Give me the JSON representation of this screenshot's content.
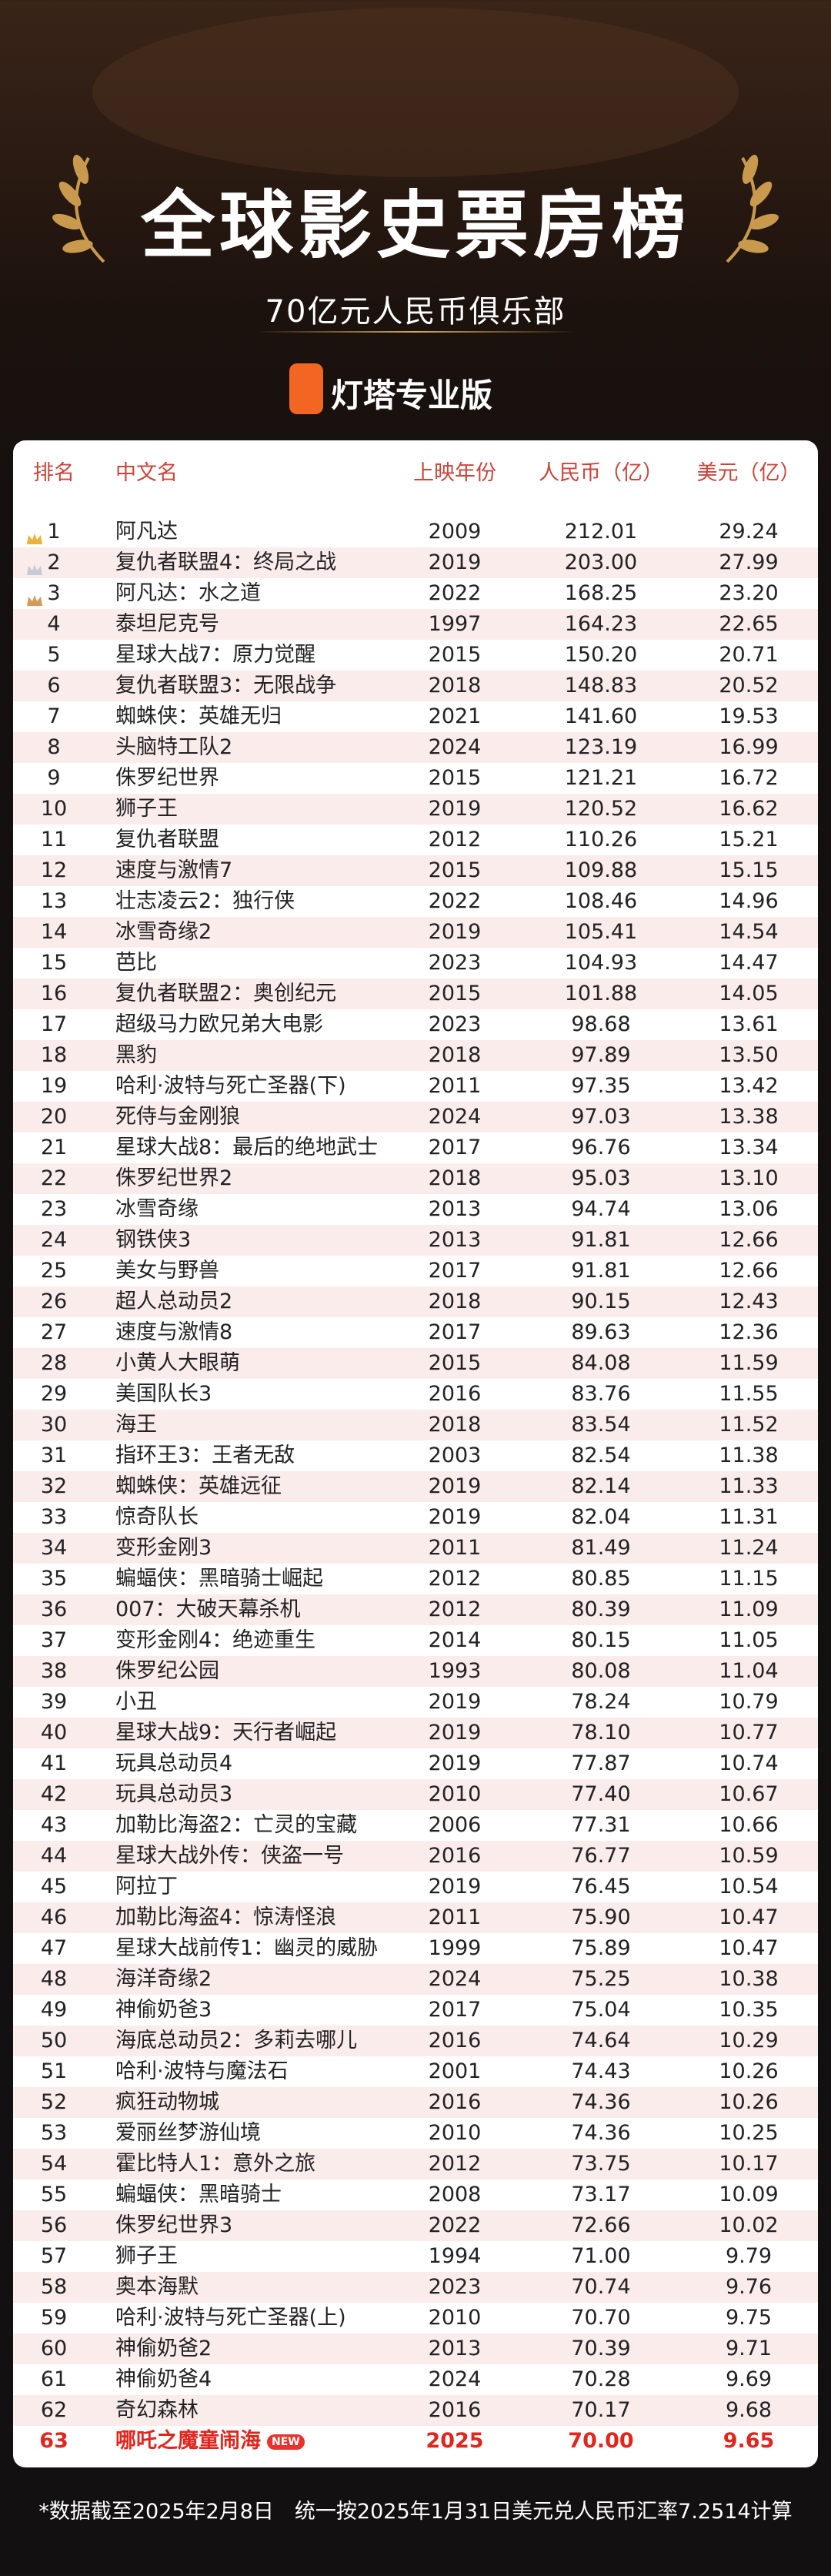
{
  "header": {
    "title": "全球影史票房榜",
    "subtitle": "70亿元人民币俱乐部",
    "brand": "灯塔专业版"
  },
  "table": {
    "columns": [
      "排名",
      "中文名",
      "上映年份",
      "人民币（亿）",
      "美元（亿）"
    ],
    "badge": "NEW",
    "rows": [
      [
        "1",
        "阿凡达",
        "2009",
        "212.01",
        "29.24"
      ],
      [
        "2",
        "复仇者联盟4：终局之战",
        "2019",
        "203.00",
        "27.99"
      ],
      [
        "3",
        "阿凡达：水之道",
        "2022",
        "168.25",
        "23.20"
      ],
      [
        "4",
        "泰坦尼克号",
        "1997",
        "164.23",
        "22.65"
      ],
      [
        "5",
        "星球大战7：原力觉醒",
        "2015",
        "150.20",
        "20.71"
      ],
      [
        "6",
        "复仇者联盟3：无限战争",
        "2018",
        "148.83",
        "20.52"
      ],
      [
        "7",
        "蜘蛛侠：英雄无归",
        "2021",
        "141.60",
        "19.53"
      ],
      [
        "8",
        "头脑特工队2",
        "2024",
        "123.19",
        "16.99"
      ],
      [
        "9",
        "侏罗纪世界",
        "2015",
        "121.21",
        "16.72"
      ],
      [
        "10",
        "狮子王",
        "2019",
        "120.52",
        "16.62"
      ],
      [
        "11",
        "复仇者联盟",
        "2012",
        "110.26",
        "15.21"
      ],
      [
        "12",
        "速度与激情7",
        "2015",
        "109.88",
        "15.15"
      ],
      [
        "13",
        "壮志凌云2：独行侠",
        "2022",
        "108.46",
        "14.96"
      ],
      [
        "14",
        "冰雪奇缘2",
        "2019",
        "105.41",
        "14.54"
      ],
      [
        "15",
        "芭比",
        "2023",
        "104.93",
        "14.47"
      ],
      [
        "16",
        "复仇者联盟2：奥创纪元",
        "2015",
        "101.88",
        "14.05"
      ],
      [
        "17",
        "超级马力欧兄弟大电影",
        "2023",
        "98.68",
        "13.61"
      ],
      [
        "18",
        "黑豹",
        "2018",
        "97.89",
        "13.50"
      ],
      [
        "19",
        "哈利·波特与死亡圣器(下)",
        "2011",
        "97.35",
        "13.42"
      ],
      [
        "20",
        "死侍与金刚狼",
        "2024",
        "97.03",
        "13.38"
      ],
      [
        "21",
        "星球大战8：最后的绝地武士",
        "2017",
        "96.76",
        "13.34"
      ],
      [
        "22",
        "侏罗纪世界2",
        "2018",
        "95.03",
        "13.10"
      ],
      [
        "23",
        "冰雪奇缘",
        "2013",
        "94.74",
        "13.06"
      ],
      [
        "24",
        "钢铁侠3",
        "2013",
        "91.81",
        "12.66"
      ],
      [
        "25",
        "美女与野兽",
        "2017",
        "91.81",
        "12.66"
      ],
      [
        "26",
        "超人总动员2",
        "2018",
        "90.15",
        "12.43"
      ],
      [
        "27",
        "速度与激情8",
        "2017",
        "89.63",
        "12.36"
      ],
      [
        "28",
        "小黄人大眼萌",
        "2015",
        "84.08",
        "11.59"
      ],
      [
        "29",
        "美国队长3",
        "2016",
        "83.76",
        "11.55"
      ],
      [
        "30",
        "海王",
        "2018",
        "83.54",
        "11.52"
      ],
      [
        "31",
        "指环王3：王者无敌",
        "2003",
        "82.54",
        "11.38"
      ],
      [
        "32",
        "蜘蛛侠：英雄远征",
        "2019",
        "82.14",
        "11.33"
      ],
      [
        "33",
        "惊奇队长",
        "2019",
        "82.04",
        "11.31"
      ],
      [
        "34",
        "变形金刚3",
        "2011",
        "81.49",
        "11.24"
      ],
      [
        "35",
        "蝙蝠侠：黑暗骑士崛起",
        "2012",
        "80.85",
        "11.15"
      ],
      [
        "36",
        "007：大破天幕杀机",
        "2012",
        "80.39",
        "11.09"
      ],
      [
        "37",
        "变形金刚4：绝迹重生",
        "2014",
        "80.15",
        "11.05"
      ],
      [
        "38",
        "侏罗纪公园",
        "1993",
        "80.08",
        "11.04"
      ],
      [
        "39",
        "小丑",
        "2019",
        "78.24",
        "10.79"
      ],
      [
        "40",
        "星球大战9：天行者崛起",
        "2019",
        "78.10",
        "10.77"
      ],
      [
        "41",
        "玩具总动员4",
        "2019",
        "77.87",
        "10.74"
      ],
      [
        "42",
        "玩具总动员3",
        "2010",
        "77.40",
        "10.67"
      ],
      [
        "43",
        "加勒比海盗2：亡灵的宝藏",
        "2006",
        "77.31",
        "10.66"
      ],
      [
        "44",
        "星球大战外传：侠盗一号",
        "2016",
        "76.77",
        "10.59"
      ],
      [
        "45",
        "阿拉丁",
        "2019",
        "76.45",
        "10.54"
      ],
      [
        "46",
        "加勒比海盗4：惊涛怪浪",
        "2011",
        "75.90",
        "10.47"
      ],
      [
        "47",
        "星球大战前传1：幽灵的威胁",
        "1999",
        "75.89",
        "10.47"
      ],
      [
        "48",
        "海洋奇缘2",
        "2024",
        "75.25",
        "10.38"
      ],
      [
        "49",
        "神偷奶爸3",
        "2017",
        "75.04",
        "10.35"
      ],
      [
        "50",
        "海底总动员2：多莉去哪儿",
        "2016",
        "74.64",
        "10.29"
      ],
      [
        "51",
        "哈利·波特与魔法石",
        "2001",
        "74.43",
        "10.26"
      ],
      [
        "52",
        "疯狂动物城",
        "2016",
        "74.36",
        "10.26"
      ],
      [
        "53",
        "爱丽丝梦游仙境",
        "2010",
        "74.36",
        "10.25"
      ],
      [
        "54",
        "霍比特人1：意外之旅",
        "2012",
        "73.75",
        "10.17"
      ],
      [
        "55",
        "蝙蝠侠：黑暗骑士",
        "2008",
        "73.17",
        "10.09"
      ],
      [
        "56",
        "侏罗纪世界3",
        "2022",
        "72.66",
        "10.02"
      ],
      [
        "57",
        "狮子王",
        "1994",
        "71.00",
        "9.79"
      ],
      [
        "58",
        "奥本海默",
        "2023",
        "70.74",
        "9.76"
      ],
      [
        "59",
        "哈利·波特与死亡圣器(上)",
        "2010",
        "70.70",
        "9.75"
      ],
      [
        "60",
        "神偷奶爸2",
        "2013",
        "70.39",
        "9.71"
      ],
      [
        "61",
        "神偷奶爸4",
        "2024",
        "70.28",
        "9.69"
      ],
      [
        "62",
        "奇幻森林",
        "2016",
        "70.17",
        "9.68"
      ],
      [
        "63",
        "哪吒之魔童闹海",
        "2025",
        "70.00",
        "9.65"
      ]
    ]
  },
  "footer": {
    "note": "*数据截至2025年2月8日　统一按2025年1月31日美元兑人民币汇率7.2514计算"
  }
}
